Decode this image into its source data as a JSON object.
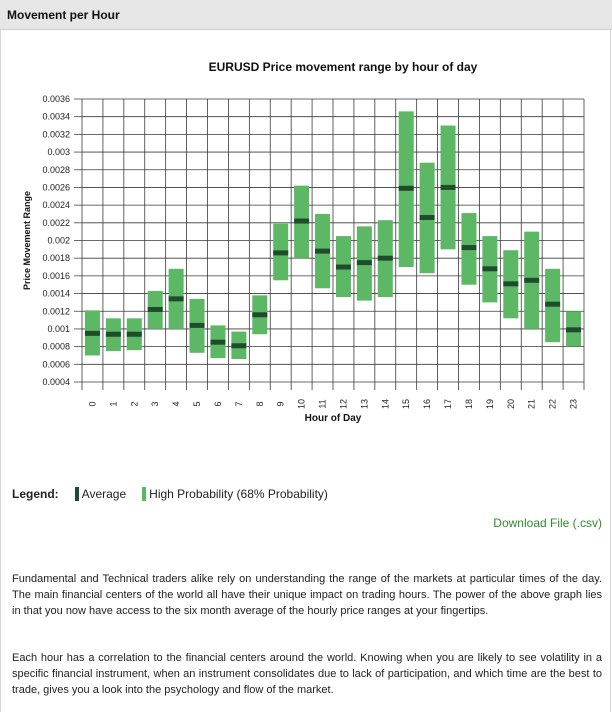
{
  "panel": {
    "title": "Movement per Hour"
  },
  "chart_data": {
    "type": "range-bar",
    "title": "EURUSD Price movement range by hour of day",
    "xlabel": "Hour of Day",
    "ylabel": "Price Movement Range",
    "categories": [
      "0",
      "1",
      "2",
      "3",
      "4",
      "5",
      "6",
      "7",
      "8",
      "9",
      "10",
      "11",
      "12",
      "13",
      "14",
      "15",
      "16",
      "17",
      "18",
      "19",
      "20",
      "21",
      "22",
      "23"
    ],
    "ylim": [
      0.0004,
      0.0036
    ],
    "yticks": [
      "0.0004",
      "0.0006",
      "0.0008",
      "0.001",
      "0.0012",
      "0.0014",
      "0.0016",
      "0.0018",
      "0.002",
      "0.0022",
      "0.0024",
      "0.0026",
      "0.0028",
      "0.003",
      "0.0032",
      "0.0034",
      "0.0036"
    ],
    "grid": true,
    "series": [
      {
        "name": "High Probability (68% Probability)",
        "low": [
          0.0007,
          0.00075,
          0.00076,
          0.001,
          0.001,
          0.00073,
          0.00067,
          0.00066,
          0.00094,
          0.00155,
          0.0018,
          0.00146,
          0.00136,
          0.00132,
          0.00136,
          0.0017,
          0.00163,
          0.0019,
          0.0015,
          0.0013,
          0.00112,
          0.001,
          0.00085,
          0.0008
        ],
        "high": [
          0.00121,
          0.00112,
          0.00112,
          0.00143,
          0.00168,
          0.00134,
          0.00104,
          0.00097,
          0.00138,
          0.00219,
          0.00262,
          0.0023,
          0.00205,
          0.00216,
          0.00223,
          0.00346,
          0.00288,
          0.0033,
          0.00231,
          0.00205,
          0.00189,
          0.0021,
          0.00168,
          0.0012
        ]
      },
      {
        "name": "Average",
        "values": [
          0.00095,
          0.00094,
          0.00094,
          0.00122,
          0.00134,
          0.00104,
          0.00085,
          0.00081,
          0.00116,
          0.00186,
          0.00222,
          0.00188,
          0.0017,
          0.00175,
          0.0018,
          0.00259,
          0.00226,
          0.0026,
          0.00192,
          0.00168,
          0.00151,
          0.00155,
          0.00128,
          0.00099
        ]
      }
    ],
    "colors": {
      "range": "#5cb865",
      "average": "#1f4d2c",
      "grid": "#3a3a3a"
    }
  },
  "legend": {
    "title": "Legend:",
    "average_label": "Average",
    "high_prob_label": "High Probability (68% Probability)"
  },
  "download": {
    "label": "Download File (.csv)"
  },
  "paragraphs": [
    "Fundamental and Technical traders alike rely on understanding the range of the markets at particular times of the day. The main financial centers of the world all have their unique impact on trading hours. The power of the above graph lies in that you now have access to the six month average of the hourly price ranges at your fingertips.",
    "Each hour has a correlation to the financial centers around the world. Knowing when you are likely to see volatility in a specific financial instrument, when an instrument consolidates due to lack of participation, and which time are the best to trade, gives you a look into the psychology and flow of the market."
  ]
}
